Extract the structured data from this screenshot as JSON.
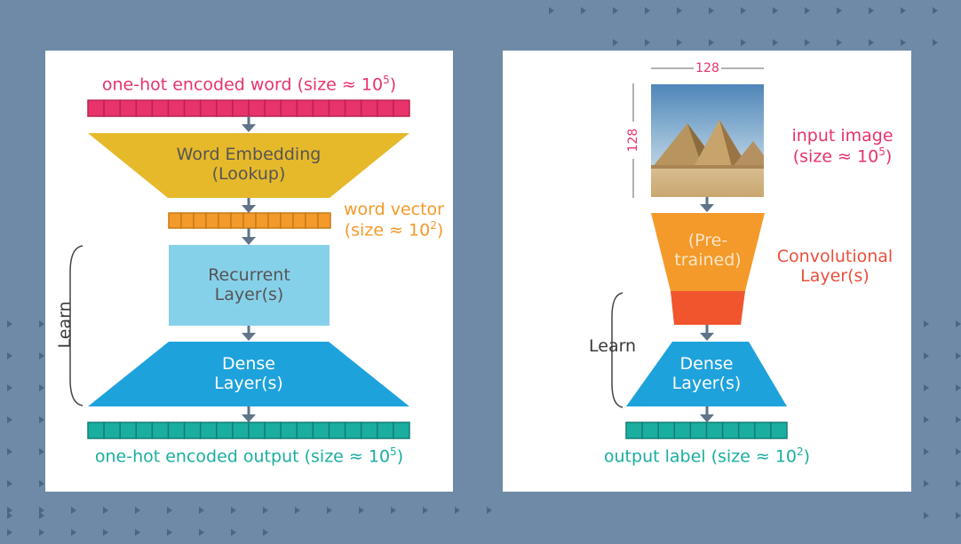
{
  "left": {
    "input_caption": "one-hot encoded word (size ≈ 10",
    "input_exp": "5",
    "input_close": ")",
    "embedding_line1": "Word Embedding",
    "embedding_line2": "(Lookup)",
    "word_vector_line1": "word vector",
    "word_vector_line2": "(size ≈ 10",
    "word_vector_exp": "2",
    "word_vector_close": ")",
    "recurrent_line1": "Recurrent",
    "recurrent_line2": "Layer(s)",
    "dense_line1": "Dense",
    "dense_line2": "Layer(s)",
    "learn": "Learn",
    "output_caption": "one-hot encoded output (size ≈ 10",
    "output_exp": "5",
    "output_close": ")"
  },
  "right": {
    "width_label": "128",
    "height_label": "128",
    "input_image_line1": "input image",
    "input_image_line2": "(size ≈ 10",
    "input_image_exp": "5",
    "input_image_close": ")",
    "pretrained_line1": "(Pre-",
    "pretrained_line2": "trained)",
    "conv_line1": "Convolutional",
    "conv_line2": "Layer(s)",
    "learn": "Learn",
    "dense_line1": "Dense",
    "dense_line2": "Layer(s)",
    "output_caption": "output label (size ≈ 10",
    "output_exp": "2",
    "output_close": ")"
  },
  "colors": {
    "background": "#6e8aa6",
    "pink": "#e8336b",
    "yellow": "#e6b92a",
    "orange": "#f39a2a",
    "light_blue": "#86d1ea",
    "blue": "#1ea2dc",
    "teal": "#1aaea0",
    "red_orange": "#f0552e"
  }
}
